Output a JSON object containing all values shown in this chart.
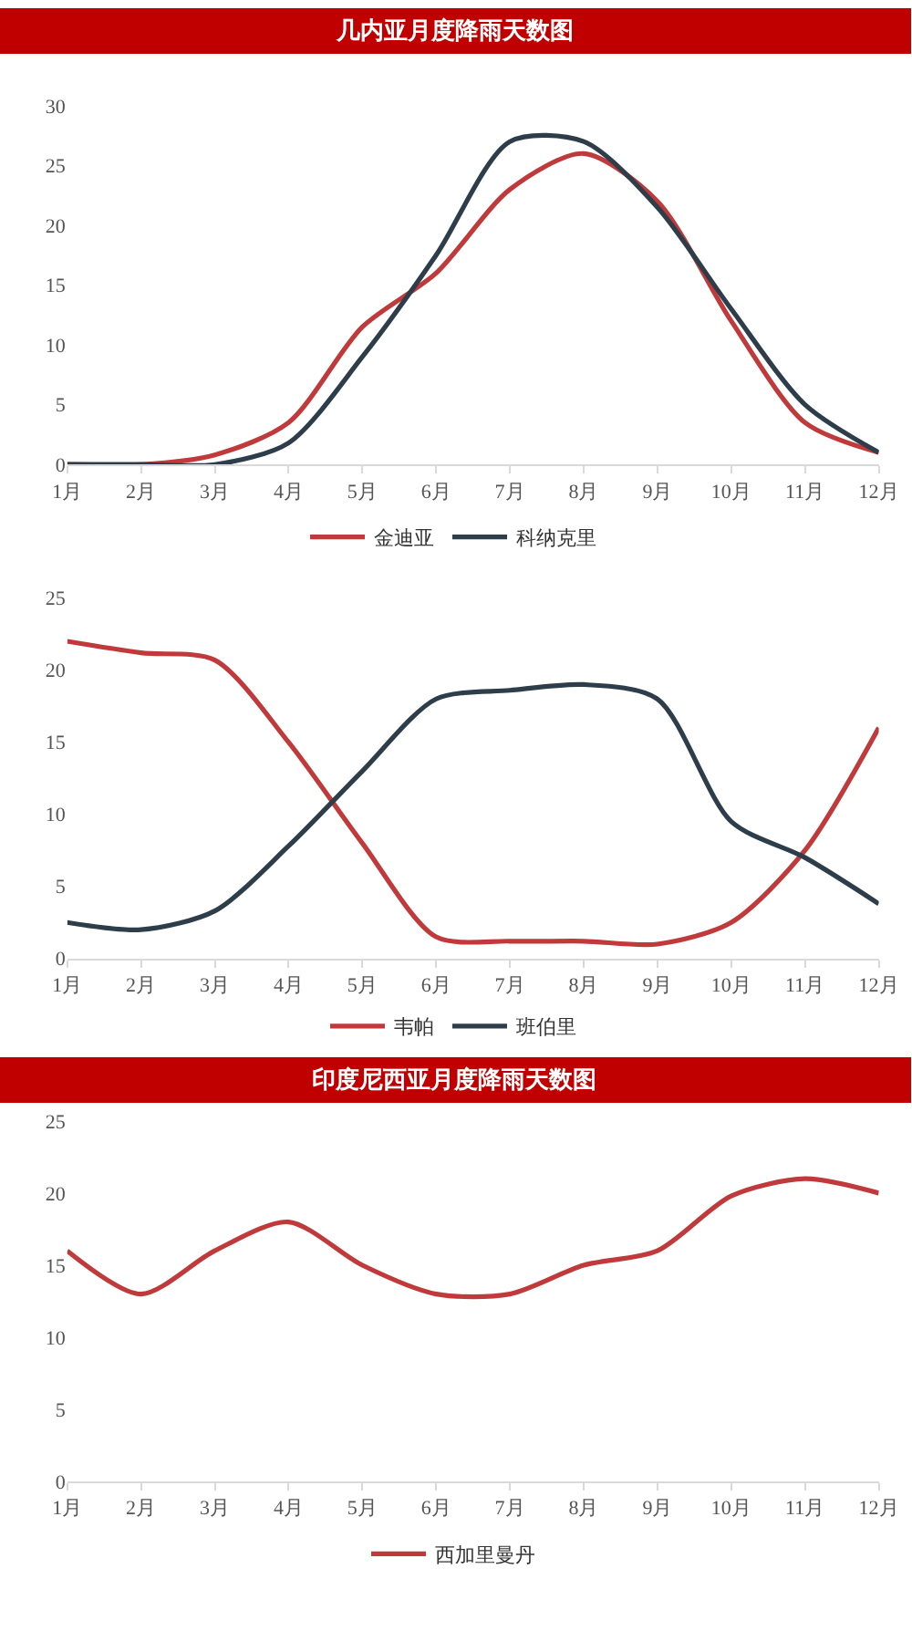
{
  "chart_data": [
    {
      "type": "line",
      "title": "几内亚月度降雨天数图",
      "categories": [
        "1月",
        "2月",
        "3月",
        "4月",
        "5月",
        "6月",
        "7月",
        "8月",
        "9月",
        "10月",
        "11月",
        "12月"
      ],
      "series": [
        {
          "name": "金迪亚",
          "color": "#c0393b",
          "values": [
            0,
            0,
            0.8,
            3.5,
            11.5,
            16,
            23,
            26,
            22,
            12,
            3.5,
            1
          ]
        },
        {
          "name": "科纳克里",
          "color": "#2d3e4a",
          "values": [
            0,
            0,
            0,
            1.8,
            9,
            17.5,
            27,
            27,
            21.5,
            13,
            5,
            1
          ]
        }
      ],
      "ylim": [
        0,
        30
      ],
      "yticks": [
        0,
        5,
        10,
        15,
        20,
        25,
        30
      ],
      "legend": "bottom",
      "line_style": "solid"
    },
    {
      "type": "line",
      "categories": [
        "1月",
        "2月",
        "3月",
        "4月",
        "5月",
        "6月",
        "7月",
        "8月",
        "9月",
        "10月",
        "11月",
        "12月"
      ],
      "series": [
        {
          "name": "韦帕",
          "color": "#c0393b",
          "values": [
            22,
            21.2,
            20.7,
            15,
            8,
            1.5,
            1.2,
            1.2,
            1,
            2.5,
            7.5,
            16
          ]
        },
        {
          "name": "班伯里",
          "color": "#2d3e4a",
          "values": [
            2.5,
            2,
            3.3,
            7.8,
            13,
            18,
            18.6,
            19,
            18,
            9.5,
            7,
            3.8
          ]
        }
      ],
      "ylim": [
        0,
        25
      ],
      "yticks": [
        0,
        5,
        10,
        15,
        20,
        25
      ],
      "legend": "bottom",
      "line_style": "solid"
    },
    {
      "type": "line",
      "title": "印度尼西亚月度降雨天数图",
      "categories": [
        "1月",
        "2月",
        "3月",
        "4月",
        "5月",
        "6月",
        "7月",
        "8月",
        "9月",
        "10月",
        "11月",
        "12月"
      ],
      "series": [
        {
          "name": "西加里曼丹",
          "color": "#c0393b",
          "values": [
            16,
            13,
            16,
            18,
            15,
            13,
            13,
            15,
            16,
            19.8,
            21,
            20
          ]
        }
      ],
      "ylim": [
        0,
        25
      ],
      "yticks": [
        0,
        5,
        10,
        15,
        20,
        25
      ],
      "legend": "bottom",
      "line_style": "solid"
    }
  ]
}
